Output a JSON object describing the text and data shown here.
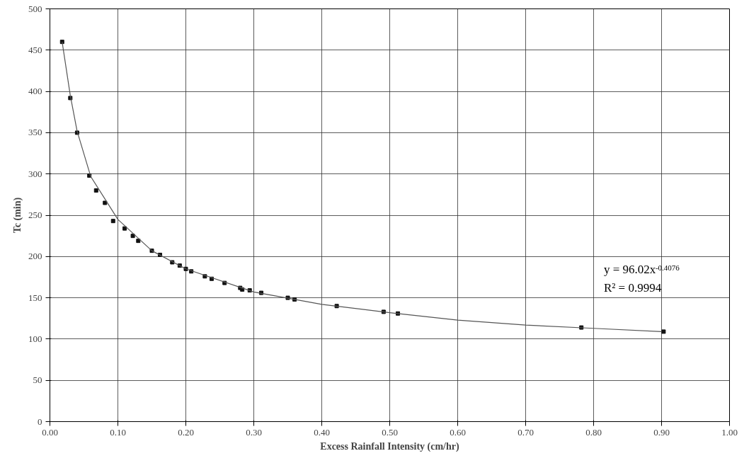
{
  "chart_data": {
    "type": "scatter",
    "xlabel": "Excess Rainfall Intensity (cm/hr)",
    "ylabel": "Tc (min)",
    "x": [
      0.018,
      0.03,
      0.04,
      0.058,
      0.068,
      0.081,
      0.093,
      0.11,
      0.122,
      0.13,
      0.15,
      0.162,
      0.18,
      0.191,
      0.2,
      0.208,
      0.228,
      0.238,
      0.257,
      0.28,
      0.283,
      0.294,
      0.311,
      0.35,
      0.36,
      0.422,
      0.491,
      0.512,
      0.782,
      0.903
    ],
    "series": [
      {
        "color": "#111111",
        "marker": "square",
        "values": [
          460,
          392,
          350,
          298,
          280,
          265,
          243,
          234,
          225,
          219,
          207,
          202,
          193,
          189,
          185,
          182,
          176,
          173,
          168,
          162,
          160,
          159,
          156,
          150,
          148,
          140,
          133,
          131,
          114,
          109
        ]
      },
      {
        "type": "line",
        "color": "#555555",
        "line_style": "solid",
        "marker": "none",
        "x": [
          0.018,
          0.03,
          0.04,
          0.06,
          0.1,
          0.15,
          0.2,
          0.3,
          0.4,
          0.5,
          0.6,
          0.7,
          0.8,
          0.9
        ],
        "values": [
          460,
          395,
          352,
          297,
          245,
          207,
          185,
          157,
          142,
          132,
          123,
          117,
          113,
          109
        ]
      }
    ],
    "xlim": [
      0,
      1.0
    ],
    "ylim": [
      0,
      500
    ],
    "xticks": [
      {
        "value": 0,
        "label": "0.00"
      },
      {
        "value": 0.1,
        "label": "0.10"
      },
      {
        "value": 0.2,
        "label": "0.20"
      },
      {
        "value": 0.3,
        "label": "0.30"
      },
      {
        "value": 0.4,
        "label": "0.40"
      },
      {
        "value": 0.5,
        "label": "0.50"
      },
      {
        "value": 0.6,
        "label": "0.60"
      },
      {
        "value": 0.7,
        "label": "0.70"
      },
      {
        "value": 0.8,
        "label": "0.80"
      },
      {
        "value": 0.9,
        "label": "0.90"
      },
      {
        "value": 1.0,
        "label": "1.00"
      }
    ],
    "yticks": [
      0,
      50,
      100,
      150,
      200,
      250,
      300,
      350,
      400,
      450,
      500
    ],
    "grid": true,
    "annotations": [
      "y = 96.02x$^{-0.4076}$",
      "R² = 0.9994"
    ]
  }
}
